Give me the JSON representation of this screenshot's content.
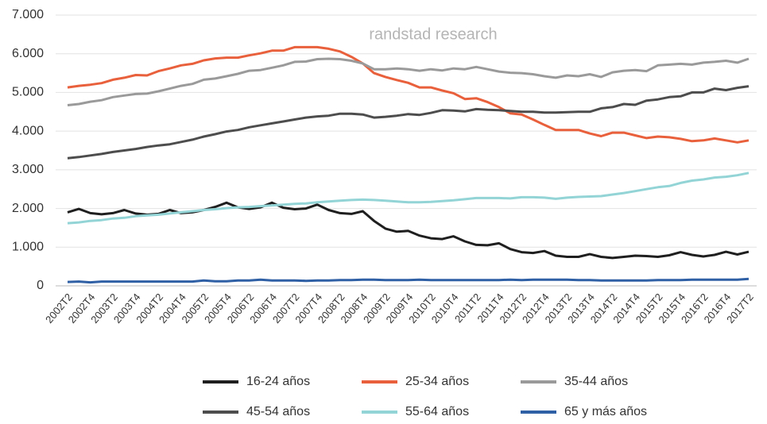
{
  "chart_data": {
    "type": "line",
    "annotation": "randstad research",
    "categories": [
      "2002T2",
      null,
      "2002T4",
      null,
      "2003T2",
      null,
      "2003T4",
      null,
      "2004T2",
      null,
      "2004T4",
      null,
      "2005T2",
      null,
      "2005T4",
      null,
      "2006T2",
      null,
      "2006T4",
      null,
      "2007T2",
      null,
      "2007T4",
      null,
      "2008T2",
      null,
      "2008T4",
      null,
      "2009T2",
      null,
      "2009T4",
      null,
      "2010T2",
      null,
      "2010T4",
      null,
      "2011T2",
      null,
      "2011T4",
      null,
      "2012T2",
      null,
      "2012T4",
      null,
      "2013T2",
      null,
      "2013T4",
      null,
      "2014T2",
      null,
      "2014T4",
      null,
      "2015T2",
      null,
      "2015T4",
      null,
      "2016T2",
      null,
      "2016T4",
      null,
      "2017T2"
    ],
    "ylim": [
      0,
      7000
    ],
    "yticks": [
      0,
      {
        "value": 1000,
        "label": "1.000"
      },
      {
        "value": 2000,
        "label": "2.000"
      },
      {
        "value": 3000,
        "label": "3.000"
      },
      {
        "value": 4000,
        "label": "4.000"
      },
      {
        "value": 5000,
        "label": "5.000"
      },
      {
        "value": 6000,
        "label": "6.000"
      },
      {
        "value": 7000,
        "label": "7.000"
      }
    ],
    "grid": true,
    "legend": "bottom",
    "series": [
      {
        "name": "16-24 años",
        "color": "#1f1f1f",
        "values": [
          1900,
          1990,
          1880,
          1850,
          1880,
          1960,
          1870,
          1840,
          1860,
          1960,
          1880,
          1900,
          1960,
          2040,
          2150,
          2030,
          1990,
          2030,
          2150,
          2020,
          1980,
          2000,
          2100,
          1960,
          1880,
          1860,
          1930,
          1680,
          1480,
          1400,
          1420,
          1300,
          1230,
          1210,
          1280,
          1150,
          1060,
          1050,
          1100,
          950,
          870,
          850,
          900,
          780,
          750,
          750,
          820,
          750,
          720,
          750,
          780,
          770,
          750,
          790,
          870,
          800,
          760,
          800,
          880,
          810,
          880
        ]
      },
      {
        "name": "25-34 años",
        "color": "#e8603c",
        "values": [
          5130,
          5170,
          5200,
          5240,
          5330,
          5380,
          5450,
          5440,
          5550,
          5620,
          5700,
          5740,
          5830,
          5880,
          5900,
          5900,
          5960,
          6010,
          6080,
          6080,
          6170,
          6170,
          6170,
          6130,
          6060,
          5920,
          5750,
          5500,
          5400,
          5320,
          5250,
          5130,
          5130,
          5050,
          4980,
          4830,
          4850,
          4750,
          4620,
          4460,
          4430,
          4300,
          4160,
          4030,
          4030,
          4030,
          3940,
          3870,
          3960,
          3960,
          3890,
          3820,
          3860,
          3840,
          3800,
          3740,
          3760,
          3810,
          3760,
          3710,
          3760
        ]
      },
      {
        "name": "35-44 años",
        "color": "#9a9a9a",
        "values": [
          4670,
          4700,
          4760,
          4800,
          4880,
          4920,
          4960,
          4970,
          5030,
          5100,
          5170,
          5220,
          5330,
          5360,
          5420,
          5480,
          5560,
          5580,
          5640,
          5700,
          5790,
          5800,
          5860,
          5870,
          5860,
          5820,
          5750,
          5600,
          5600,
          5620,
          5600,
          5560,
          5600,
          5570,
          5620,
          5600,
          5660,
          5600,
          5540,
          5510,
          5500,
          5470,
          5420,
          5380,
          5440,
          5420,
          5470,
          5400,
          5520,
          5560,
          5580,
          5550,
          5700,
          5720,
          5740,
          5720,
          5770,
          5790,
          5820,
          5770,
          5870
        ]
      },
      {
        "name": "45-54 años",
        "color": "#4d4d4d",
        "values": [
          3300,
          3330,
          3370,
          3410,
          3460,
          3500,
          3540,
          3590,
          3630,
          3660,
          3720,
          3780,
          3860,
          3920,
          3990,
          4030,
          4100,
          4150,
          4200,
          4250,
          4300,
          4350,
          4380,
          4400,
          4450,
          4450,
          4430,
          4350,
          4370,
          4400,
          4440,
          4420,
          4470,
          4540,
          4530,
          4510,
          4570,
          4550,
          4540,
          4520,
          4500,
          4500,
          4480,
          4480,
          4490,
          4500,
          4500,
          4590,
          4620,
          4700,
          4680,
          4790,
          4820,
          4880,
          4900,
          5000,
          5000,
          5100,
          5060,
          5120,
          5160
        ]
      },
      {
        "name": "55-64 años",
        "color": "#93d4d6",
        "values": [
          1620,
          1640,
          1680,
          1700,
          1740,
          1760,
          1800,
          1820,
          1840,
          1870,
          1900,
          1930,
          1960,
          1980,
          2010,
          2030,
          2040,
          2060,
          2080,
          2100,
          2120,
          2130,
          2160,
          2180,
          2200,
          2220,
          2230,
          2220,
          2200,
          2180,
          2160,
          2160,
          2170,
          2190,
          2210,
          2240,
          2270,
          2270,
          2270,
          2260,
          2290,
          2290,
          2280,
          2250,
          2280,
          2300,
          2310,
          2320,
          2360,
          2400,
          2450,
          2500,
          2550,
          2580,
          2660,
          2720,
          2750,
          2800,
          2820,
          2860,
          2920
        ]
      },
      {
        "name": "65 y más años",
        "color": "#2f5fa5",
        "values": [
          100,
          110,
          90,
          110,
          110,
          110,
          110,
          110,
          110,
          110,
          110,
          110,
          140,
          120,
          120,
          140,
          140,
          160,
          140,
          140,
          140,
          130,
          140,
          140,
          150,
          150,
          160,
          160,
          150,
          150,
          150,
          160,
          150,
          150,
          150,
          150,
          150,
          150,
          150,
          160,
          150,
          160,
          160,
          160,
          160,
          150,
          150,
          140,
          140,
          140,
          140,
          140,
          150,
          150,
          150,
          160,
          160,
          160,
          160,
          160,
          180
        ]
      }
    ]
  }
}
